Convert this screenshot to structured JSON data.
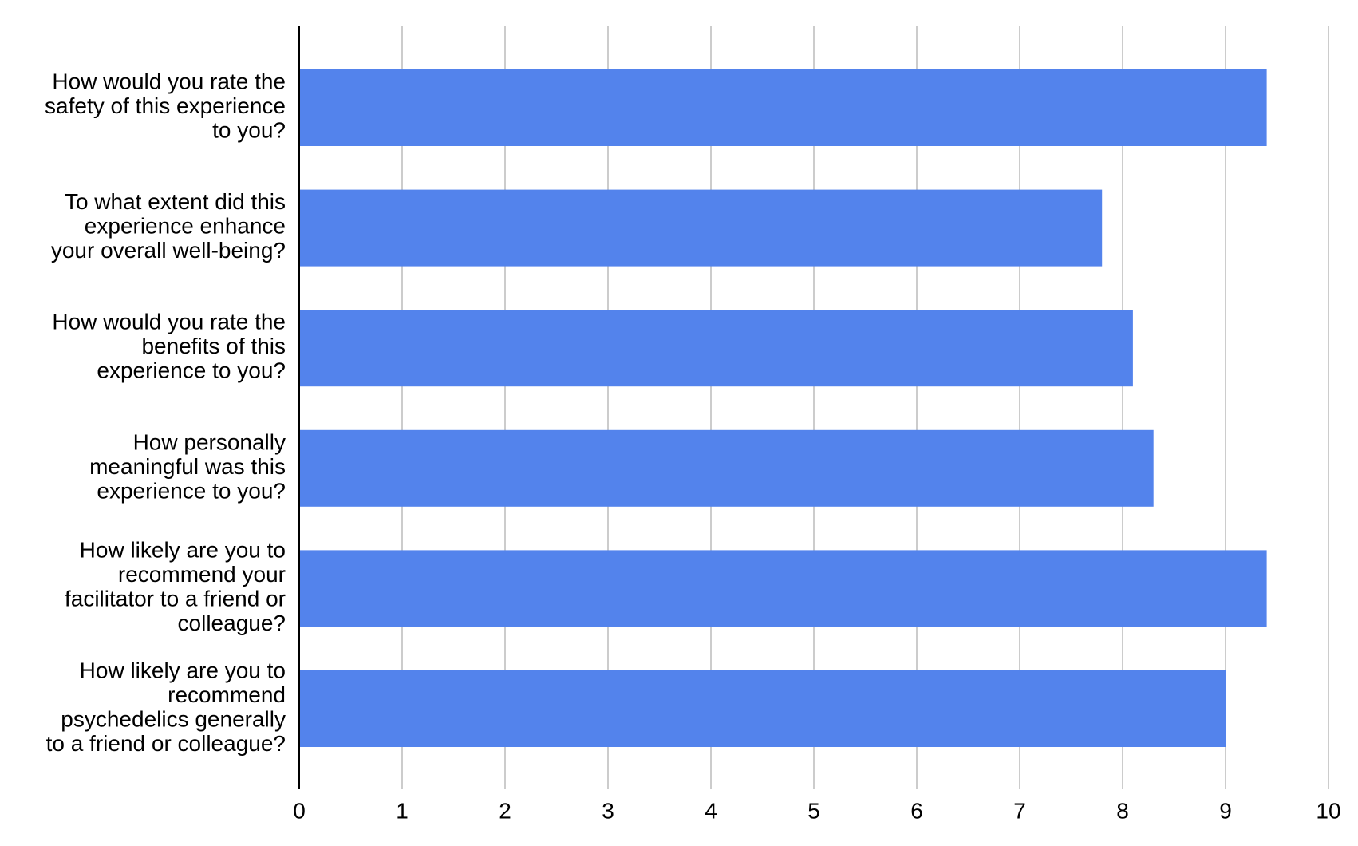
{
  "chart_data": {
    "type": "bar",
    "orientation": "horizontal",
    "categories": [
      "How would you rate the\nsafety of this experience\nto you?",
      "To what extent did this\nexperience enhance\nyour overall well-being?",
      "How would you rate the\nbenefits of this\nexperience to you?",
      "How personally\nmeaningful was this\nexperience to you?",
      "How likely are you to\nrecommend your\nfacilitator to a friend or\ncolleague?",
      "How likely are you to\nrecommend\npsychedelics generally\nto a friend or colleague?"
    ],
    "values": [
      9.4,
      7.8,
      8.1,
      8.3,
      9.4,
      9.0
    ],
    "color": "#5383ec",
    "xlim": [
      0,
      10
    ],
    "xticks": [
      0,
      1,
      2,
      3,
      4,
      5,
      6,
      7,
      8,
      9,
      10
    ],
    "grid": true
  }
}
